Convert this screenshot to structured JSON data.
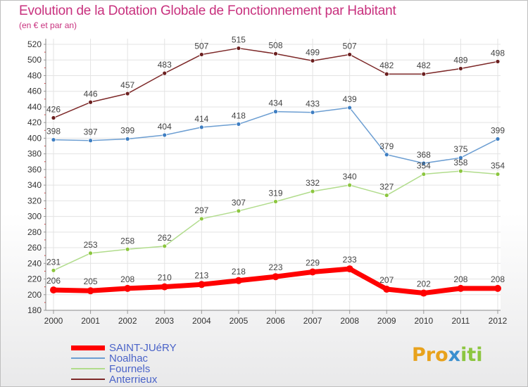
{
  "title": "Evolution de la Dotation Globale de Fonctionnement par Habitant",
  "subtitle": "(en € et par an)",
  "logo": {
    "text": "Pro",
    "x_letter": "x",
    "rest": "iti",
    "colors": [
      "#e8a21c",
      "#3a8fcf",
      "#8cc63f"
    ]
  },
  "chart_data": {
    "type": "line",
    "title": "Evolution de la Dotation Globale de Fonctionnement par Habitant",
    "subtitle": "(en € et par an)",
    "xlabel": "",
    "ylabel": "",
    "ylim": [
      180,
      520
    ],
    "yticks": [
      180,
      200,
      220,
      240,
      260,
      280,
      300,
      320,
      340,
      360,
      380,
      400,
      420,
      440,
      460,
      480,
      500,
      520
    ],
    "x": [
      "2000",
      "2001",
      "2002",
      "2003",
      "2004",
      "2005",
      "2006",
      "2007",
      "2008",
      "2009",
      "2010",
      "2011",
      "2012"
    ],
    "grid": true,
    "legend_position": "bottom-left",
    "series": [
      {
        "name": "SAINT-JUéRY",
        "color": "#ff0000",
        "marker": "#ff0000",
        "values": [
          206,
          205,
          208,
          210,
          213,
          218,
          223,
          229,
          233,
          207,
          202,
          208,
          208
        ]
      },
      {
        "name": "Noalhac",
        "color": "#6c9ed2",
        "marker": "#3e7ec2",
        "values": [
          398,
          397,
          399,
          404,
          414,
          418,
          434,
          433,
          439,
          379,
          368,
          375,
          399
        ]
      },
      {
        "name": "Fournels",
        "color": "#b1dc8c",
        "marker": "#8cc63f",
        "values": [
          231,
          253,
          258,
          262,
          297,
          307,
          319,
          332,
          340,
          327,
          354,
          358,
          354
        ]
      },
      {
        "name": "Anterrieux",
        "color": "#7d2828",
        "marker": "#6b1f1f",
        "values": [
          426,
          446,
          457,
          483,
          507,
          515,
          508,
          499,
          507,
          482,
          482,
          489,
          498
        ]
      }
    ]
  }
}
